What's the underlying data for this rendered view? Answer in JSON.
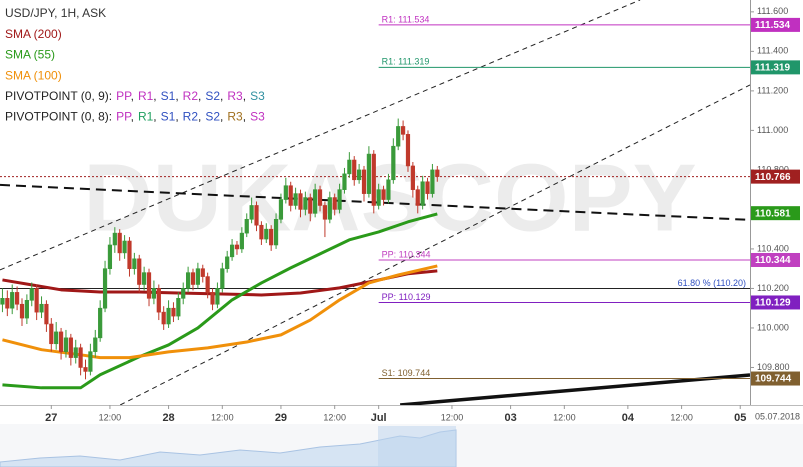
{
  "chart_data": {
    "type": "candlestick",
    "title": "USD/JPY, 1H, ASK",
    "watermark": "DUKASCOPY",
    "xlim": [
      -0.5,
      153
    ],
    "ylim": [
      109.61,
      111.66
    ],
    "xticks": [
      {
        "value": 10,
        "label": "27"
      },
      {
        "value": 22,
        "label": "12:00"
      },
      {
        "value": 34,
        "label": "28"
      },
      {
        "value": 45,
        "label": "12:00"
      },
      {
        "value": 57,
        "label": "29"
      },
      {
        "value": 68,
        "label": "12:00"
      },
      {
        "value": 77,
        "label": "Jul"
      },
      {
        "value": 92,
        "label": "12:00"
      },
      {
        "value": 104,
        "label": "03"
      },
      {
        "value": 115,
        "label": "12:00"
      },
      {
        "value": 128,
        "label": "04"
      },
      {
        "value": 139,
        "label": "12:00"
      },
      {
        "value": 151,
        "label": "05"
      }
    ],
    "date_label": "05.07.2018",
    "yticks": [
      {
        "value": 111.6,
        "label": "111.600"
      },
      {
        "value": 111.4,
        "label": "111.400"
      },
      {
        "value": 111.2,
        "label": "111.200"
      },
      {
        "value": 111.0,
        "label": "111.000"
      },
      {
        "value": 110.8,
        "label": "110.800"
      },
      {
        "value": 110.4,
        "label": "110.400"
      },
      {
        "value": 110.2,
        "label": "110.200"
      },
      {
        "value": 110.0,
        "label": "110.000"
      },
      {
        "value": 109.8,
        "label": "109.800"
      }
    ],
    "up_color": "#3a9a3a",
    "down_color": "#c0392b",
    "x": [
      0,
      1,
      2,
      3,
      4,
      5,
      6,
      7,
      8,
      9,
      10,
      11,
      12,
      13,
      14,
      15,
      16,
      17,
      18,
      19,
      20,
      21,
      22,
      23,
      24,
      25,
      26,
      27,
      28,
      29,
      30,
      31,
      32,
      33,
      34,
      35,
      36,
      37,
      38,
      39,
      40,
      41,
      42,
      43,
      44,
      45,
      46,
      47,
      48,
      49,
      50,
      51,
      52,
      53,
      54,
      55,
      56,
      57,
      58,
      59,
      60,
      61,
      62,
      63,
      64,
      65,
      66,
      67,
      68,
      69,
      70,
      71,
      72,
      73,
      74,
      75,
      76,
      77,
      78,
      79,
      80,
      81,
      82,
      83,
      84,
      85,
      86,
      87,
      88,
      89
    ],
    "ohlc": [
      [
        110.12,
        110.2,
        110.08,
        110.15
      ],
      [
        110.15,
        110.19,
        110.06,
        110.1
      ],
      [
        110.1,
        110.22,
        110.07,
        110.18
      ],
      [
        110.18,
        110.21,
        110.09,
        110.12
      ],
      [
        110.12,
        110.15,
        110.01,
        110.05
      ],
      [
        110.05,
        110.17,
        110.02,
        110.14
      ],
      [
        110.14,
        110.23,
        110.11,
        110.2
      ],
      [
        110.2,
        110.22,
        110.04,
        110.08
      ],
      [
        110.08,
        110.16,
        110.05,
        110.12
      ],
      [
        110.12,
        110.14,
        109.98,
        110.02
      ],
      [
        110.02,
        110.05,
        109.88,
        109.92
      ],
      [
        109.92,
        110.03,
        109.89,
        109.98
      ],
      [
        109.98,
        110.0,
        109.84,
        109.88
      ],
      [
        109.88,
        109.99,
        109.85,
        109.95
      ],
      [
        109.95,
        109.97,
        109.81,
        109.85
      ],
      [
        109.85,
        109.94,
        109.82,
        109.9
      ],
      [
        109.9,
        109.92,
        109.76,
        109.8
      ],
      [
        109.8,
        109.84,
        109.74,
        109.78
      ],
      [
        109.78,
        109.92,
        109.76,
        109.88
      ],
      [
        109.88,
        109.99,
        109.85,
        109.95
      ],
      [
        109.95,
        110.14,
        109.93,
        110.1
      ],
      [
        110.1,
        110.34,
        110.08,
        110.3
      ],
      [
        110.3,
        110.46,
        110.27,
        110.42
      ],
      [
        110.42,
        110.51,
        110.38,
        110.48
      ],
      [
        110.48,
        110.5,
        110.34,
        110.38
      ],
      [
        110.38,
        110.47,
        110.35,
        110.44
      ],
      [
        110.44,
        110.46,
        110.26,
        110.3
      ],
      [
        110.3,
        110.38,
        110.27,
        110.35
      ],
      [
        110.35,
        110.37,
        110.18,
        110.22
      ],
      [
        110.22,
        110.31,
        110.19,
        110.28
      ],
      [
        110.28,
        110.3,
        110.11,
        110.15
      ],
      [
        110.15,
        110.24,
        110.12,
        110.2
      ],
      [
        110.2,
        110.22,
        110.04,
        110.08
      ],
      [
        110.08,
        110.11,
        109.99,
        110.02
      ],
      [
        110.02,
        110.14,
        110.0,
        110.1
      ],
      [
        110.1,
        110.13,
        110.03,
        110.06
      ],
      [
        110.06,
        110.18,
        110.04,
        110.15
      ],
      [
        110.15,
        110.23,
        110.12,
        110.2
      ],
      [
        110.2,
        110.31,
        110.18,
        110.28
      ],
      [
        110.28,
        110.3,
        110.19,
        110.22
      ],
      [
        110.22,
        110.33,
        110.2,
        110.3
      ],
      [
        110.3,
        110.32,
        110.23,
        110.26
      ],
      [
        110.26,
        110.28,
        110.15,
        110.18
      ],
      [
        110.18,
        110.2,
        110.09,
        110.12
      ],
      [
        110.12,
        110.23,
        110.1,
        110.2
      ],
      [
        110.2,
        110.33,
        110.18,
        110.3
      ],
      [
        110.3,
        110.39,
        110.28,
        110.36
      ],
      [
        110.36,
        110.45,
        110.34,
        110.42
      ],
      [
        110.42,
        110.44,
        110.37,
        110.4
      ],
      [
        110.4,
        110.51,
        110.38,
        110.48
      ],
      [
        110.48,
        110.58,
        110.46,
        110.55
      ],
      [
        110.55,
        110.66,
        110.53,
        110.62
      ],
      [
        110.62,
        110.64,
        110.49,
        110.52
      ],
      [
        110.52,
        110.54,
        110.42,
        110.45
      ],
      [
        110.45,
        110.53,
        110.43,
        110.5
      ],
      [
        110.5,
        110.52,
        110.39,
        110.42
      ],
      [
        110.42,
        110.58,
        110.4,
        110.55
      ],
      [
        110.55,
        110.68,
        110.53,
        110.65
      ],
      [
        110.65,
        110.76,
        110.63,
        110.72
      ],
      [
        110.72,
        110.74,
        110.59,
        110.62
      ],
      [
        110.62,
        110.71,
        110.6,
        110.68
      ],
      [
        110.68,
        110.7,
        110.56,
        110.6
      ],
      [
        110.6,
        110.69,
        110.57,
        110.66
      ],
      [
        110.66,
        110.68,
        110.54,
        110.58
      ],
      [
        110.58,
        110.73,
        110.56,
        110.7
      ],
      [
        110.7,
        110.72,
        110.59,
        110.62
      ],
      [
        110.62,
        110.64,
        110.46,
        110.55
      ],
      [
        110.55,
        110.69,
        110.53,
        110.66
      ],
      [
        110.66,
        110.68,
        110.57,
        110.6
      ],
      [
        110.6,
        110.73,
        110.58,
        110.7
      ],
      [
        110.7,
        110.81,
        110.68,
        110.78
      ],
      [
        110.78,
        110.89,
        110.76,
        110.85
      ],
      [
        110.85,
        110.87,
        110.72,
        110.75
      ],
      [
        110.75,
        110.83,
        110.73,
        110.8
      ],
      [
        110.8,
        110.82,
        110.64,
        110.68
      ],
      [
        110.68,
        110.92,
        110.66,
        110.88
      ],
      [
        110.88,
        110.9,
        110.58,
        110.62
      ],
      [
        110.62,
        110.73,
        110.6,
        110.7
      ],
      [
        110.7,
        110.72,
        110.62,
        110.65
      ],
      [
        110.65,
        110.78,
        110.63,
        110.75
      ],
      [
        110.75,
        110.96,
        110.73,
        110.92
      ],
      [
        110.92,
        111.06,
        110.9,
        111.02
      ],
      [
        111.02,
        111.05,
        110.95,
        110.98
      ],
      [
        110.98,
        111.0,
        110.79,
        110.82
      ],
      [
        110.82,
        110.84,
        110.66,
        110.7
      ],
      [
        110.7,
        110.72,
        110.58,
        110.62
      ],
      [
        110.62,
        110.77,
        110.6,
        110.74
      ],
      [
        110.74,
        110.76,
        110.65,
        110.68
      ],
      [
        110.68,
        110.83,
        110.66,
        110.8
      ],
      [
        110.8,
        110.82,
        110.74,
        110.766
      ]
    ],
    "series": [
      {
        "name": "SMA (200)",
        "color": "#a01818",
        "x": [
          0,
          6,
          12,
          20,
          28,
          36,
          45,
          53,
          61,
          69,
          77,
          83,
          89
        ],
        "values": [
          110.243,
          110.218,
          110.193,
          110.182,
          110.182,
          110.177,
          110.172,
          110.167,
          110.177,
          110.203,
          110.243,
          110.274,
          110.289
        ]
      },
      {
        "name": "SMA (55)",
        "color": "#2a9a1a",
        "x": [
          0,
          8,
          16,
          20,
          28,
          34,
          40,
          47,
          53,
          59,
          65,
          71,
          77,
          83,
          89
        ],
        "values": [
          109.712,
          109.697,
          109.697,
          109.763,
          109.854,
          109.914,
          110.0,
          110.142,
          110.228,
          110.304,
          110.375,
          110.446,
          110.486,
          110.537,
          110.577
        ],
        "tag_value": 110.581
      },
      {
        "name": "SMA (100)",
        "color": "#f0900a",
        "x": [
          0,
          8,
          16,
          20,
          26,
          34,
          42,
          50,
          57,
          63,
          69,
          75,
          81,
          89
        ],
        "values": [
          109.94,
          109.89,
          109.864,
          109.85,
          109.85,
          109.879,
          109.899,
          109.929,
          109.965,
          110.04,
          110.142,
          110.228,
          110.268,
          110.314
        ]
      }
    ],
    "pivot_legend": [
      {
        "label": "PIVOTPOINT (0, 9):",
        "separator": ",",
        "items": [
          {
            "text": "PP",
            "color": "#c030c0"
          },
          {
            "text": "R1",
            "color": "#c030c0"
          },
          {
            "text": "S1",
            "color": "#3050c0"
          },
          {
            "text": "R2",
            "color": "#c030c0"
          },
          {
            "text": "S2",
            "color": "#3050c0"
          },
          {
            "text": "R3",
            "color": "#c030c0"
          },
          {
            "text": "S3",
            "color": "#3090a0"
          }
        ]
      },
      {
        "label": "PIVOTPOINT (0, 8):",
        "separator": ",",
        "items": [
          {
            "text": "PP",
            "color": "#c030c0"
          },
          {
            "text": "R1",
            "color": "#20a060"
          },
          {
            "text": "S1",
            "color": "#3050c0"
          },
          {
            "text": "R2",
            "color": "#3050c0"
          },
          {
            "text": "S2",
            "color": "#3050c0"
          },
          {
            "text": "R3",
            "color": "#a07020"
          },
          {
            "text": "S3",
            "color": "#c030c0"
          }
        ]
      }
    ],
    "levels": [
      {
        "label": "R1: 111.534",
        "value": 111.534,
        "color": "#c030c0",
        "from_x": 77
      },
      {
        "label": "R1: 111.319",
        "value": 111.319,
        "color": "#20966a",
        "from_x": 77
      },
      {
        "label": "PP: 110.344",
        "value": 110.344,
        "color": "#c040c0",
        "from_x": 77
      },
      {
        "label": "PP: 110.129",
        "value": 110.129,
        "color": "#8020c0",
        "from_x": 77
      },
      {
        "label": "S1: 109.744",
        "value": 109.744,
        "color": "#806030",
        "from_x": 77
      }
    ],
    "fib_level": {
      "label": "61.80 % (110.20)",
      "value": 110.2,
      "color": "#222"
    },
    "last_price": {
      "value": 110.766,
      "color": "#a02020"
    },
    "trendlines": [
      {
        "x": [
          -0.5,
          130.5
        ],
        "values": [
          110.294,
          111.66
        ],
        "style": "dashed"
      },
      {
        "x": [
          24.1,
          153
        ],
        "values": [
          109.61,
          111.23
        ],
        "style": "dashed"
      },
      {
        "x": [
          -0.5,
          153
        ],
        "values": [
          110.724,
          110.547
        ],
        "style": "dashed-bold"
      },
      {
        "x": [
          81.4,
          153
        ],
        "values": [
          109.61,
          109.762
        ],
        "style": "solid-bold"
      }
    ]
  }
}
